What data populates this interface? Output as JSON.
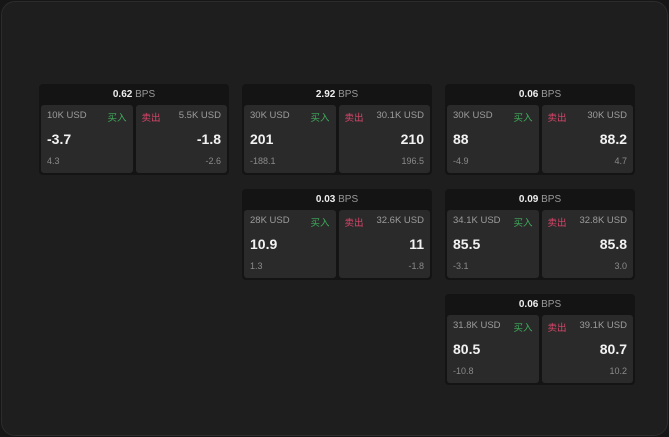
{
  "cards": [
    {
      "bps": "0.62",
      "unit": "BPS",
      "buy": {
        "size": "10K USD",
        "label": "买入",
        "price": "-3.7",
        "change": "4.3"
      },
      "sell": {
        "size": "5.5K USD",
        "label": "卖出",
        "price": "-1.8",
        "change": "-2.6"
      }
    },
    {
      "bps": "2.92",
      "unit": "BPS",
      "buy": {
        "size": "30K USD",
        "label": "买入",
        "price": "201",
        "change": "-188.1"
      },
      "sell": {
        "size": "30.1K USD",
        "label": "卖出",
        "price": "210",
        "change": "196.5"
      }
    },
    {
      "bps": "0.06",
      "unit": "BPS",
      "buy": {
        "size": "30K USD",
        "label": "买入",
        "price": "88",
        "change": "-4.9"
      },
      "sell": {
        "size": "30K USD",
        "label": "卖出",
        "price": "88.2",
        "change": "4.7"
      }
    },
    {
      "bps": "0.03",
      "unit": "BPS",
      "buy": {
        "size": "28K USD",
        "label": "买入",
        "price": "10.9",
        "change": "1.3"
      },
      "sell": {
        "size": "32.6K USD",
        "label": "卖出",
        "price": "11",
        "change": "-1.8"
      }
    },
    {
      "bps": "0.09",
      "unit": "BPS",
      "buy": {
        "size": "34.1K USD",
        "label": "买入",
        "price": "85.5",
        "change": "-3.1"
      },
      "sell": {
        "size": "32.8K USD",
        "label": "卖出",
        "price": "85.8",
        "change": "3.0"
      }
    },
    {
      "bps": "0.06",
      "unit": "BPS",
      "buy": {
        "size": "31.8K USD",
        "label": "买入",
        "price": "80.5",
        "change": "-10.8"
      },
      "sell": {
        "size": "39.1K USD",
        "label": "卖出",
        "price": "80.7",
        "change": "10.2"
      }
    }
  ],
  "colors": {
    "buy": "#3fae5c",
    "sell": "#d9456a"
  }
}
